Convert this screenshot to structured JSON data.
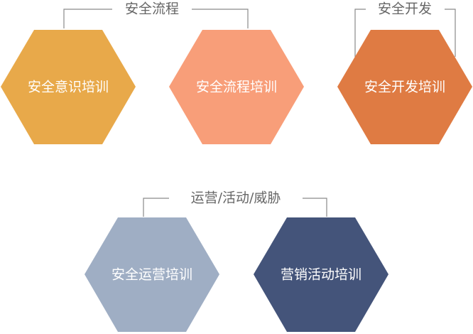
{
  "groups": {
    "process": {
      "label": "安全流程"
    },
    "dev": {
      "label": "安全开发"
    },
    "ops": {
      "label": "运营/活动/威胁"
    }
  },
  "hexagons": [
    {
      "label": "安全意识培训",
      "color": "#E8A94A"
    },
    {
      "label": "安全流程培训",
      "color": "#F89E79"
    },
    {
      "label": "安全开发培训",
      "color": "#DF7B43"
    },
    {
      "label": "安全运营培训",
      "color": "#9FAEC4"
    },
    {
      "label": "营销活动培训",
      "color": "#44547A"
    }
  ],
  "colors": {
    "bracket": "#8a8a8a",
    "group_text": "#666666",
    "hex_text": "#ffffff"
  }
}
